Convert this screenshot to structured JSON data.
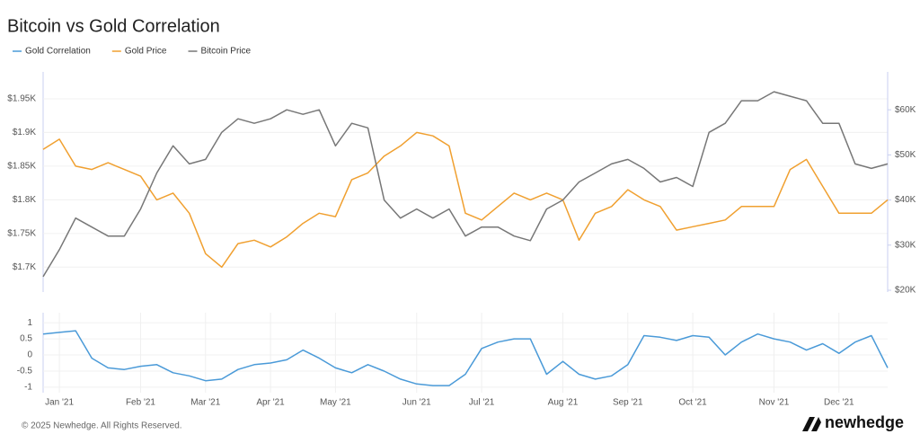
{
  "chart_data": [
    {
      "type": "line",
      "title": "Bitcoin vs Gold Correlation",
      "series": [
        {
          "name": "Gold Price",
          "color": "#f0a030",
          "axis": "y",
          "values": [
            1875,
            1890,
            1850,
            1845,
            1855,
            1845,
            1835,
            1800,
            1810,
            1780,
            1720,
            1700,
            1735,
            1740,
            1730,
            1745,
            1765,
            1780,
            1775,
            1830,
            1840,
            1865,
            1880,
            1900,
            1895,
            1880,
            1780,
            1770,
            1790,
            1810,
            1800,
            1810,
            1800,
            1740,
            1780,
            1790,
            1815,
            1800,
            1790,
            1755,
            1760,
            1765,
            1770,
            1790,
            1790,
            1790,
            1845,
            1860,
            1820,
            1780,
            1780,
            1780,
            1800
          ]
        },
        {
          "name": "Bitcoin Price",
          "color": "#777777",
          "axis": "y2",
          "values": [
            23000,
            29000,
            36000,
            34000,
            32000,
            32000,
            38000,
            46000,
            52000,
            48000,
            49000,
            55000,
            58000,
            57000,
            58000,
            60000,
            59000,
            60000,
            52000,
            57000,
            56000,
            40000,
            36000,
            38000,
            36000,
            38000,
            32000,
            34000,
            34000,
            32000,
            31000,
            38000,
            40000,
            44000,
            46000,
            48000,
            49000,
            47000,
            44000,
            45000,
            43000,
            55000,
            57000,
            62000,
            62000,
            64000,
            63000,
            62000,
            57000,
            57000,
            48000,
            47000,
            48000
          ]
        }
      ],
      "ylim": [
        1663,
        1990
      ],
      "yticks": [
        {
          "value": 1700,
          "label": "$1.7K"
        },
        {
          "value": 1750,
          "label": "$1.75K"
        },
        {
          "value": 1800,
          "label": "$1.8K"
        },
        {
          "value": 1850,
          "label": "$1.85K"
        },
        {
          "value": 1900,
          "label": "$1.9K"
        },
        {
          "value": 1950,
          "label": "$1.95K"
        }
      ],
      "y2lim": [
        19600,
        68400
      ],
      "y2ticks": [
        {
          "value": 20000,
          "label": "$20K"
        },
        {
          "value": 30000,
          "label": "$30K"
        },
        {
          "value": 40000,
          "label": "$40K"
        },
        {
          "value": 50000,
          "label": "$50K"
        },
        {
          "value": 60000,
          "label": "$60K"
        }
      ],
      "grid": true
    },
    {
      "type": "line",
      "categories": [
        null,
        "Jan '21",
        null,
        null,
        null,
        null,
        "Feb '21",
        null,
        null,
        null,
        "Mar '21",
        null,
        null,
        null,
        "Apr '21",
        null,
        null,
        null,
        "May '21",
        null,
        null,
        null,
        null,
        "Jun '21",
        null,
        null,
        null,
        "Jul '21",
        null,
        null,
        null,
        null,
        "Aug '21",
        null,
        null,
        null,
        "Sep '21",
        null,
        null,
        null,
        "Oct '21",
        null,
        null,
        null,
        null,
        "Nov '21",
        null,
        null,
        null,
        "Dec '21",
        null,
        null,
        null
      ],
      "series": [
        {
          "name": "Gold Correlation",
          "color": "#4a9ad8",
          "values": [
            0.65,
            0.7,
            0.75,
            -0.1,
            -0.4,
            -0.45,
            -0.35,
            -0.3,
            -0.55,
            -0.65,
            -0.8,
            -0.75,
            -0.45,
            -0.3,
            -0.25,
            -0.15,
            0.15,
            -0.1,
            -0.4,
            -0.55,
            -0.3,
            -0.5,
            -0.75,
            -0.9,
            -0.95,
            -0.95,
            -0.6,
            0.2,
            0.4,
            0.5,
            0.5,
            -0.6,
            -0.2,
            -0.6,
            -0.75,
            -0.65,
            -0.3,
            0.6,
            0.55,
            0.45,
            0.6,
            0.55,
            0.0,
            0.4,
            0.65,
            0.5,
            0.4,
            0.15,
            0.35,
            0.05,
            0.4,
            0.6,
            -0.4
          ]
        }
      ],
      "ylim": [
        -1.17,
        1.31
      ],
      "yticks": [
        1,
        0.5,
        0,
        -0.5,
        -1
      ],
      "grid": true
    }
  ],
  "footer": {
    "copyright": "© 2025 Newhedge. All Rights Reserved.",
    "brand": "newhedge"
  }
}
